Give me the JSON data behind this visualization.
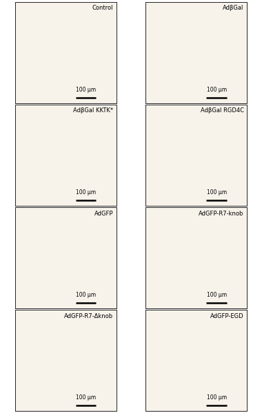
{
  "panel_labels": [
    [
      "Control",
      "AdβGal"
    ],
    [
      "AdβGal KKTK*",
      "AdβGal RGD4C"
    ],
    [
      "AdGFP",
      "AdGFP-R7-knob"
    ],
    [
      "AdGFP-R7-Δknob",
      "AdGFP-EGD"
    ]
  ],
  "scale_bar_text": "100 μm",
  "bg_color": "#f7f2ea",
  "cell_fill": "#ffffff",
  "cell_edge_color": "#7a2a2a",
  "vessel_color": "#8B1a1a",
  "label_color": "#000000",
  "scale_bar_color": "#000000",
  "fig_width": 3.8,
  "fig_height": 6.0,
  "dpi": 100,
  "nrows": 4,
  "ncols": 2,
  "label_fontsize": 6.0,
  "scale_fontsize": 5.5
}
